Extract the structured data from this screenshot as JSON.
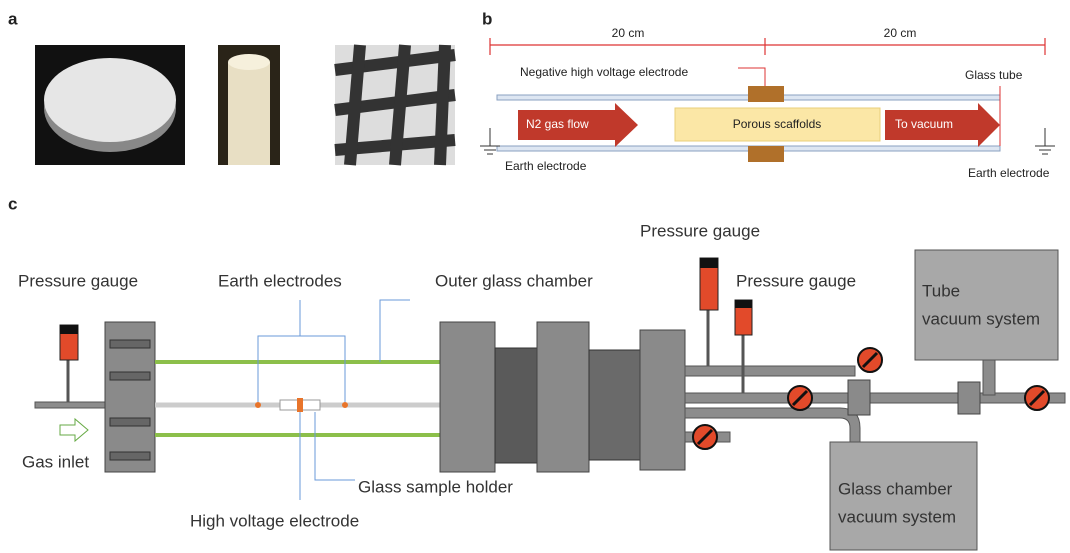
{
  "panel_labels": {
    "a": "a",
    "b": "b",
    "c": "c"
  },
  "panel_b": {
    "dim_left": "20 cm",
    "dim_right": "20 cm",
    "negative_electrode": "Negative high voltage electrode",
    "glass_tube": "Glass tube",
    "gas_flow": "N2 gas flow",
    "scaffolds": "Porous scaffolds",
    "to_vacuum": "To vacuum",
    "earth_left": "Earth electrode",
    "earth_right": "Earth electrode"
  },
  "panel_c": {
    "pressure_gauge_left": "Pressure gauge",
    "earth_electrodes": "Earth electrodes",
    "outer_chamber": "Outer glass chamber",
    "pressure_gauge_top": "Pressure gauge",
    "pressure_gauge_right": "Pressure gauge",
    "tube_vacuum": [
      "Tube",
      "vacuum system"
    ],
    "gas_inlet": "Gas inlet",
    "sample_holder": "Glass sample holder",
    "hv_electrode": "High voltage electrode",
    "chamber_vacuum": [
      "Glass chamber",
      "vacuum system"
    ]
  }
}
